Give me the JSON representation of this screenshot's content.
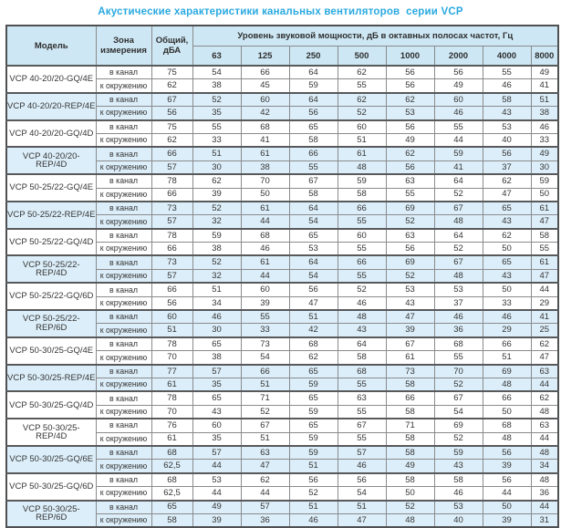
{
  "page": {
    "title": "Акустические характеристики канальных вентиляторов  серии VCP"
  },
  "colors": {
    "title_accent": "#29a9e0",
    "header_bg": "#cde7f4",
    "stripe_bg": "#dceef9",
    "border": "#58595b"
  },
  "table": {
    "headers": {
      "model": "Модель",
      "zone": "Зона измерения",
      "total": "Общий, дБА",
      "freq_group": "Уровень звуковой мощности, дБ в октавных полосах частот, Гц",
      "frequencies": [
        "63",
        "125",
        "250",
        "500",
        "1000",
        "2000",
        "4000",
        "8000"
      ]
    },
    "zone_labels": {
      "duct": "в канал",
      "ambient": "к окружению"
    },
    "models": [
      {
        "model": "VCP 40-20/20-GQ/4E",
        "striped": false,
        "rows": [
          {
            "zone": "в канал",
            "total": "75",
            "levels": [
              54,
              66,
              64,
              62,
              56,
              56,
              55,
              49
            ]
          },
          {
            "zone": "к окружению",
            "total": "62",
            "levels": [
              38,
              45,
              59,
              55,
              56,
              49,
              46,
              41
            ]
          }
        ]
      },
      {
        "model": "VCP 40-20/20-REP/4E",
        "striped": true,
        "rows": [
          {
            "zone": "в канал",
            "total": "67",
            "levels": [
              52,
              60,
              64,
              62,
              62,
              60,
              58,
              51
            ]
          },
          {
            "zone": "к окружению",
            "total": "56",
            "levels": [
              35,
              42,
              56,
              52,
              53,
              46,
              43,
              38
            ]
          }
        ]
      },
      {
        "model": "VCP 40-20/20-GQ/4D",
        "striped": false,
        "rows": [
          {
            "zone": "в канал",
            "total": "75",
            "levels": [
              55,
              68,
              65,
              60,
              56,
              55,
              53,
              46
            ]
          },
          {
            "zone": "к окружению",
            "total": "62",
            "levels": [
              33,
              41,
              58,
              51,
              49,
              44,
              40,
              33
            ]
          }
        ]
      },
      {
        "model": "VCP 40-20/20-REP/4D",
        "striped": true,
        "rows": [
          {
            "zone": "в канал",
            "total": "66",
            "levels": [
              51,
              61,
              66,
              61,
              62,
              59,
              56,
              49
            ]
          },
          {
            "zone": "к окружению",
            "total": "57",
            "levels": [
              30,
              38,
              55,
              48,
              56,
              41,
              37,
              30
            ]
          }
        ]
      },
      {
        "model": "VCP 50-25/22-GQ/4E",
        "striped": false,
        "rows": [
          {
            "zone": "в канал",
            "total": "78",
            "levels": [
              62,
              70,
              67,
              59,
              63,
              64,
              62,
              59
            ]
          },
          {
            "zone": "к окружению",
            "total": "66",
            "levels": [
              39,
              50,
              58,
              58,
              55,
              52,
              47,
              50
            ]
          }
        ]
      },
      {
        "model": "VCP 50-25/22-REP/4E",
        "striped": true,
        "rows": [
          {
            "zone": "в канал",
            "total": "73",
            "levels": [
              52,
              61,
              64,
              66,
              69,
              67,
              65,
              61
            ]
          },
          {
            "zone": "к окружению",
            "total": "57",
            "levels": [
              32,
              44,
              54,
              55,
              52,
              48,
              43,
              47
            ]
          }
        ]
      },
      {
        "model": "VCP 50-25/22-GQ/4D",
        "striped": false,
        "rows": [
          {
            "zone": "в канал",
            "total": "78",
            "levels": [
              59,
              68,
              65,
              60,
              63,
              64,
              62,
              58
            ]
          },
          {
            "zone": "к окружению",
            "total": "66",
            "levels": [
              38,
              46,
              53,
              55,
              56,
              52,
              50,
              55
            ]
          }
        ]
      },
      {
        "model": "VCP 50-25/22-REP/4D",
        "striped": true,
        "rows": [
          {
            "zone": "в канал",
            "total": "73",
            "levels": [
              52,
              61,
              64,
              66,
              69,
              67,
              65,
              61
            ]
          },
          {
            "zone": "к окружению",
            "total": "57",
            "levels": [
              32,
              44,
              54,
              55,
              52,
              48,
              43,
              47
            ]
          }
        ]
      },
      {
        "model": "VCP 50-25/22-GQ/6D",
        "striped": false,
        "rows": [
          {
            "zone": "в канал",
            "total": "66",
            "levels": [
              51,
              60,
              56,
              52,
              53,
              53,
              50,
              44
            ]
          },
          {
            "zone": "к окружению",
            "total": "56",
            "levels": [
              34,
              39,
              47,
              46,
              43,
              37,
              33,
              29
            ]
          }
        ]
      },
      {
        "model": "VCP 50-25/22-REP/6D",
        "striped": true,
        "rows": [
          {
            "zone": "в канал",
            "total": "60",
            "levels": [
              46,
              55,
              51,
              48,
              47,
              46,
              46,
              41
            ]
          },
          {
            "zone": "к окружению",
            "total": "51",
            "levels": [
              30,
              33,
              42,
              43,
              39,
              36,
              29,
              25
            ]
          }
        ]
      },
      {
        "model": "VCP 50-30/25-GQ/4E",
        "striped": false,
        "rows": [
          {
            "zone": "в канал",
            "total": "78",
            "levels": [
              65,
              73,
              68,
              64,
              67,
              68,
              66,
              62
            ]
          },
          {
            "zone": "к окружению",
            "total": "70",
            "levels": [
              38,
              54,
              62,
              58,
              61,
              55,
              51,
              47
            ]
          }
        ]
      },
      {
        "model": "VCP 50-30/25-REP/4E",
        "striped": true,
        "rows": [
          {
            "zone": "в канал",
            "total": "77",
            "levels": [
              57,
              66,
              65,
              68,
              73,
              70,
              69,
              63
            ]
          },
          {
            "zone": "к окружению",
            "total": "61",
            "levels": [
              35,
              51,
              59,
              55,
              58,
              52,
              48,
              44
            ]
          }
        ]
      },
      {
        "model": "VCP 50-30/25-GQ/4D",
        "striped": false,
        "rows": [
          {
            "zone": "в канал",
            "total": "78",
            "levels": [
              65,
              71,
              65,
              63,
              66,
              67,
              66,
              62
            ]
          },
          {
            "zone": "к окружению",
            "total": "70",
            "levels": [
              43,
              52,
              59,
              55,
              58,
              54,
              50,
              48
            ]
          }
        ]
      },
      {
        "model": "VCP 50-30/25-REP/4D",
        "striped": false,
        "rows": [
          {
            "zone": "в канал",
            "total": "76",
            "levels": [
              60,
              67,
              65,
              67,
              71,
              69,
              68,
              63
            ]
          },
          {
            "zone": "к окружению",
            "total": "61",
            "levels": [
              35,
              51,
              59,
              55,
              58,
              52,
              48,
              44
            ]
          }
        ]
      },
      {
        "model": "VCP 50-30/25-GQ/6E",
        "striped": true,
        "rows": [
          {
            "zone": "в канал",
            "total": "68",
            "levels": [
              57,
              63,
              59,
              57,
              58,
              59,
              56,
              48
            ]
          },
          {
            "zone": "к окружению",
            "total": "62,5",
            "levels": [
              44,
              47,
              51,
              46,
              49,
              43,
              39,
              34
            ]
          }
        ]
      },
      {
        "model": "VCP 50-30/25-GQ/6D",
        "striped": false,
        "rows": [
          {
            "zone": "в канал",
            "total": "68",
            "levels": [
              53,
              62,
              56,
              56,
              58,
              58,
              56,
              48
            ]
          },
          {
            "zone": "к окружению",
            "total": "62,5",
            "levels": [
              44,
              44,
              52,
              54,
              50,
              46,
              44,
              36
            ]
          }
        ]
      },
      {
        "model": "VCP 50-30/25-REP/6D",
        "striped": true,
        "rows": [
          {
            "zone": "в канал",
            "total": "65",
            "levels": [
              49,
              57,
              51,
              51,
              52,
              53,
              50,
              44
            ]
          },
          {
            "zone": "к окружению",
            "total": "58",
            "levels": [
              39,
              36,
              46,
              47,
              48,
              40,
              39,
              31
            ]
          }
        ]
      }
    ]
  }
}
